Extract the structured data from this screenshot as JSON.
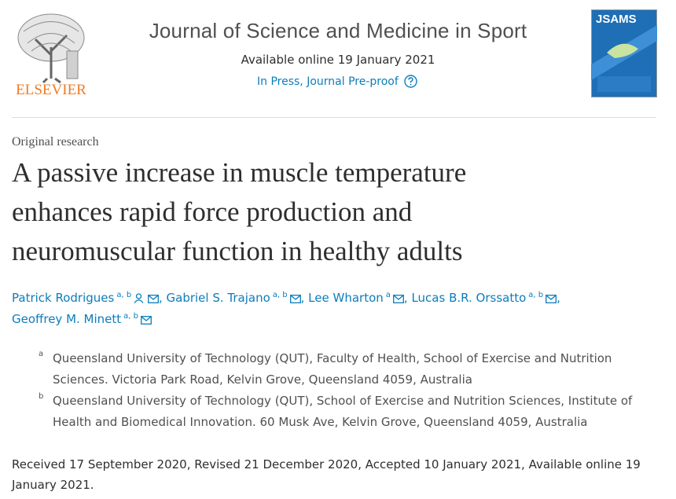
{
  "header": {
    "publisher": "ELSEVIER",
    "journal": "Journal of Science and Medicine in Sport",
    "available": "Available online 19 January 2021",
    "status": "In Press, Journal Pre-proof",
    "cover_title": "JSAMS"
  },
  "article": {
    "type": "Original research",
    "title": "A passive increase in muscle temperature enhances rapid force production and neuromuscular function in healthy adults",
    "authors": [
      {
        "name": "Patrick Rodrigues",
        "affil": "a, b",
        "corresponding": true
      },
      {
        "name": "Gabriel S. Trajano",
        "affil": "a, b",
        "corresponding": false
      },
      {
        "name": "Lee Wharton",
        "affil": "a",
        "corresponding": false
      },
      {
        "name": "Lucas B.R. Orssatto",
        "affil": "a, b",
        "corresponding": false
      },
      {
        "name": "Geoffrey M. Minett",
        "affil": "a, b",
        "corresponding": false
      }
    ],
    "affiliations": [
      {
        "label": "a",
        "text": "Queensland University of Technology (QUT), Faculty of Health, School of Exercise and Nutrition Sciences. Victoria Park Road, Kelvin Grove, Queensland 4059, Australia"
      },
      {
        "label": "b",
        "text": "Queensland University of Technology (QUT), School of Exercise and Nutrition Sciences, Institute of Health and Biomedical Innovation. 60 Musk Ave, Kelvin Grove, Queensland 4059, Australia"
      }
    ],
    "dates": "Received 17 September 2020, Revised 21 December 2020, Accepted 10 January 2021, Available online 19 January 2021."
  }
}
